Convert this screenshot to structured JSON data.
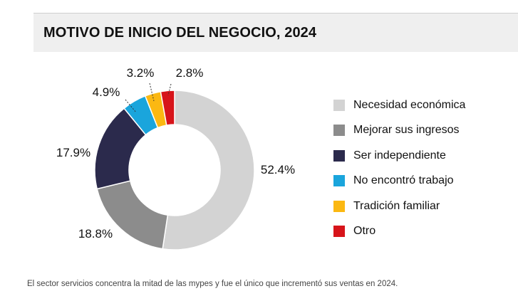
{
  "chart_data": {
    "type": "pie",
    "title": "MOTIVO DE INICIO DEL NEGOCIO, 2024",
    "unit": "%",
    "categories": [
      "Necesidad económica",
      "Mejorar sus ingresos",
      "Ser independiente",
      "No encontró trabajo",
      "Tradición familiar",
      "Otro"
    ],
    "values": [
      52.4,
      18.8,
      17.9,
      4.9,
      3.2,
      2.8
    ],
    "value_labels": [
      "52.4%",
      "18.8%",
      "17.9%",
      "4.9%",
      "3.2%",
      "2.8%"
    ],
    "colors": [
      "#d3d3d3",
      "#8c8c8c",
      "#2b2a4c",
      "#1aa5dc",
      "#fbb812",
      "#d7141a"
    ],
    "donut": true,
    "legend": "right"
  },
  "caption": "El sector servicios concentra la mitad de las mypes y fue el único que incrementó sus ventas en 2024."
}
